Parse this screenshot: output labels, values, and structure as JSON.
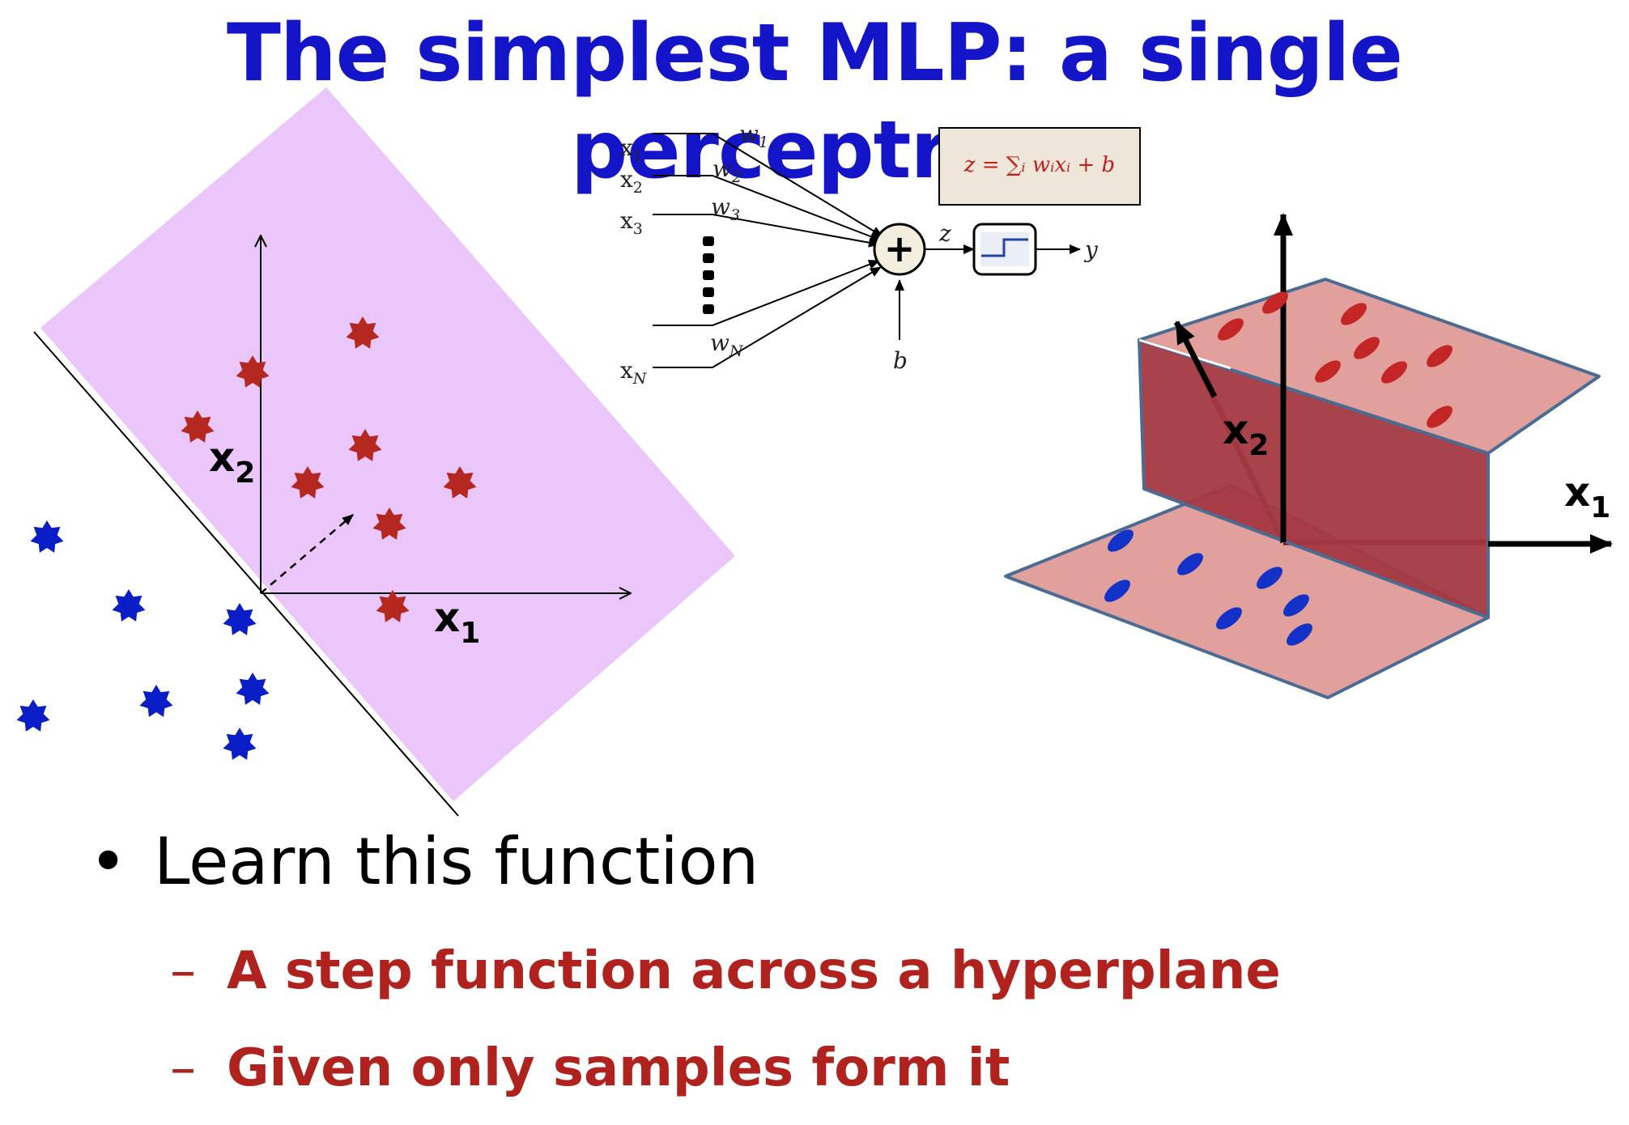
{
  "title": "The simplest MLP: a single perceptron",
  "bullets": {
    "main": "Learn this function",
    "sub": [
      "A step function across a hyperplane",
      "Given only samples form it"
    ]
  },
  "plot2d": {
    "x_axis_label": "x",
    "x_axis_sub": "1",
    "y_axis_label": "x",
    "y_axis_sub": "2",
    "region_color": "#ebc6fb",
    "positive_color": "#b42820",
    "negative_color": "#0a1ec8"
  },
  "perceptron": {
    "inputs": [
      {
        "name": "x",
        "sub": "1",
        "weight": "w",
        "weight_sub": "1"
      },
      {
        "name": "x",
        "sub": "2",
        "weight": "w",
        "weight_sub": "2"
      },
      {
        "name": "x",
        "sub": "3",
        "weight": "w",
        "weight_sub": "3"
      },
      {
        "name": "x",
        "sub": "N",
        "weight": "w",
        "weight_sub": "N"
      }
    ],
    "sum_symbol": "+",
    "sum_output": "z",
    "output": "y",
    "bias": "b",
    "formula": "z = ∑ᵢ wᵢxᵢ + b"
  },
  "plot3d": {
    "x_axis_label": "x",
    "x_axis_sub": "1",
    "y_axis_label": "x",
    "y_axis_sub": "2",
    "plane_color": "#e2a09c",
    "wall_color": "#a43a44",
    "edge_color": "#4a6c94"
  }
}
